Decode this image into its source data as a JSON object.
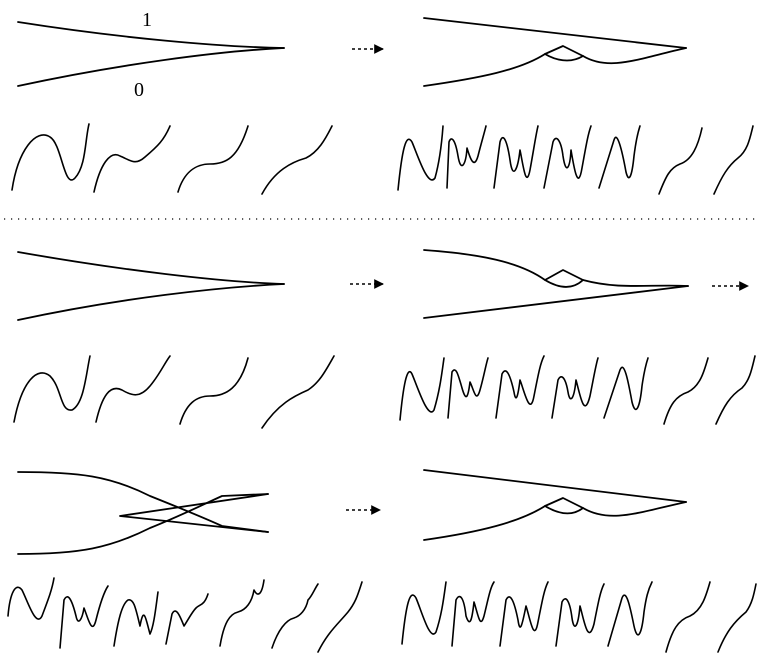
{
  "labels": {
    "upper_strand": "1",
    "lower_strand": "0"
  }
}
